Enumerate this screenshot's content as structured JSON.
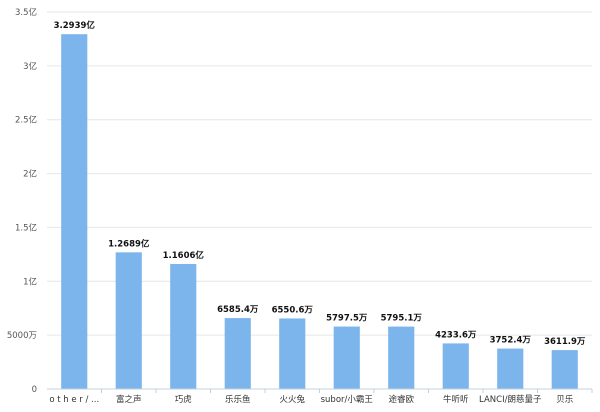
{
  "chart_data": {
    "type": "bar",
    "categories": [
      "o t h e r / ...",
      "富之声",
      "巧虎",
      "乐乐鱼",
      "火火兔",
      "subor/小霸王",
      "途睿欧",
      "牛听听",
      "LANCI/朗慈量子",
      "贝乐"
    ],
    "values": [
      329390000,
      126890000,
      116060000,
      65854000,
      65506000,
      57975000,
      57951000,
      42336000,
      37524000,
      36119000
    ],
    "data_labels": [
      "3.2939亿",
      "1.2689亿",
      "1.1606亿",
      "6585.4万",
      "6550.6万",
      "5797.5万",
      "5795.1万",
      "4233.6万",
      "3752.4万",
      "3611.9万"
    ],
    "y_ticks": [
      {
        "value": 0,
        "label": "0"
      },
      {
        "value": 50000000,
        "label": "5000万"
      },
      {
        "value": 100000000,
        "label": "1亿"
      },
      {
        "value": 150000000,
        "label": "1.5亿"
      },
      {
        "value": 200000000,
        "label": "2亿"
      },
      {
        "value": 250000000,
        "label": "2.5亿"
      },
      {
        "value": 300000000,
        "label": "3亿"
      },
      {
        "value": 350000000,
        "label": "3.5亿"
      }
    ],
    "ylim": [
      0,
      350000000
    ],
    "grid": true,
    "bar_color": "#7cb5ec",
    "grid_color": "#e6e6e6",
    "axis_color": "#c0d0e0"
  }
}
